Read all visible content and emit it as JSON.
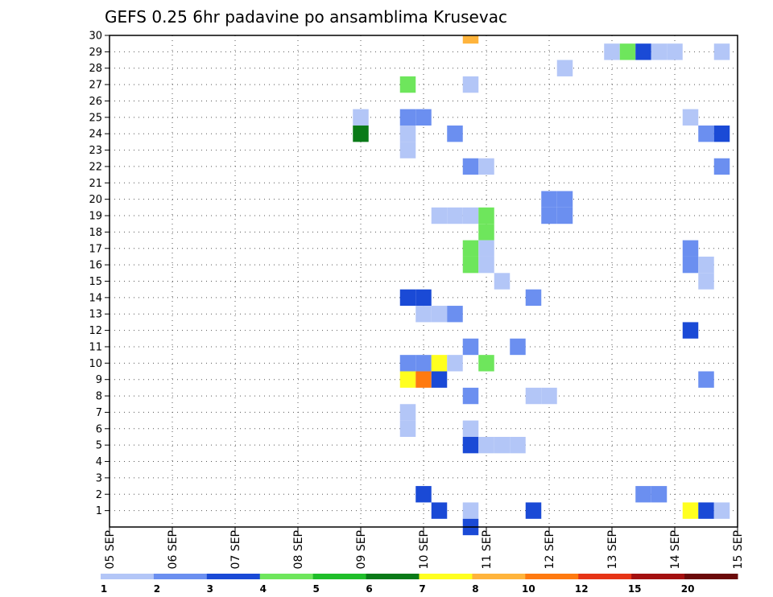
{
  "chart_data": {
    "type": "heatmap",
    "title": "GEFS 0.25 6hr padavine po ansamblima Krusevac",
    "x_tick_labels": [
      "05 SEP",
      "06 SEP",
      "07 SEP",
      "08 SEP",
      "09 SEP",
      "10 SEP",
      "11 SEP",
      "12 SEP",
      "13 SEP",
      "14 SEP",
      "15 SEP"
    ],
    "x_range_days": [
      5,
      15
    ],
    "y_tick_labels": [
      "1",
      "2",
      "3",
      "4",
      "5",
      "6",
      "7",
      "8",
      "9",
      "10",
      "11",
      "12",
      "13",
      "14",
      "15",
      "16",
      "17",
      "18",
      "19",
      "20",
      "21",
      "22",
      "23",
      "24",
      "25",
      "26",
      "27",
      "28",
      "29",
      "30"
    ],
    "y_range": [
      0,
      30
    ],
    "grid": true,
    "colorbar": {
      "labels": [
        "1",
        "2",
        "3",
        "4",
        "5",
        "6",
        "7",
        "8",
        "10",
        "12",
        "15",
        "20"
      ],
      "colors": [
        "#b3c6f7",
        "#6b8ff0",
        "#1a4ad6",
        "#6ee65c",
        "#1fbe2a",
        "#0a7a18",
        "#ffff1f",
        "#ffb43c",
        "#ff7a10",
        "#e63416",
        "#a41010",
        "#6b0a0a"
      ]
    },
    "cells": [
      {
        "member": 30,
        "day": 10.75,
        "color": "#ffb43c"
      },
      {
        "member": 29,
        "day": 13.0,
        "color": "#b3c6f7"
      },
      {
        "member": 29,
        "day": 13.25,
        "color": "#6ee65c"
      },
      {
        "member": 29,
        "day": 13.5,
        "color": "#1a4ad6"
      },
      {
        "member": 29,
        "day": 13.75,
        "color": "#b3c6f7"
      },
      {
        "member": 29,
        "day": 14.0,
        "color": "#b3c6f7"
      },
      {
        "member": 29,
        "day": 14.75,
        "color": "#b3c6f7"
      },
      {
        "member": 28,
        "day": 12.25,
        "color": "#b3c6f7"
      },
      {
        "member": 27,
        "day": 9.75,
        "color": "#6ee65c"
      },
      {
        "member": 27,
        "day": 10.75,
        "color": "#b3c6f7"
      },
      {
        "member": 25,
        "day": 9.0,
        "color": "#b3c6f7"
      },
      {
        "member": 25,
        "day": 9.75,
        "color": "#6b8ff0"
      },
      {
        "member": 25,
        "day": 10.0,
        "color": "#6b8ff0"
      },
      {
        "member": 25,
        "day": 14.25,
        "color": "#b3c6f7"
      },
      {
        "member": 24,
        "day": 9.0,
        "color": "#0a7a18"
      },
      {
        "member": 24,
        "day": 9.75,
        "color": "#b3c6f7"
      },
      {
        "member": 24,
        "day": 10.5,
        "color": "#6b8ff0"
      },
      {
        "member": 24,
        "day": 14.5,
        "color": "#6b8ff0"
      },
      {
        "member": 24,
        "day": 14.75,
        "color": "#1a4ad6"
      },
      {
        "member": 23,
        "day": 9.75,
        "color": "#b3c6f7"
      },
      {
        "member": 22,
        "day": 10.75,
        "color": "#6b8ff0"
      },
      {
        "member": 22,
        "day": 11.0,
        "color": "#b3c6f7"
      },
      {
        "member": 22,
        "day": 14.75,
        "color": "#6b8ff0"
      },
      {
        "member": 20,
        "day": 12.0,
        "color": "#6b8ff0"
      },
      {
        "member": 20,
        "day": 12.25,
        "color": "#6b8ff0"
      },
      {
        "member": 19,
        "day": 12.0,
        "color": "#6b8ff0"
      },
      {
        "member": 19,
        "day": 12.25,
        "color": "#6b8ff0"
      },
      {
        "member": 19,
        "day": 10.25,
        "color": "#b3c6f7"
      },
      {
        "member": 19,
        "day": 10.5,
        "color": "#b3c6f7"
      },
      {
        "member": 19,
        "day": 10.75,
        "color": "#b3c6f7"
      },
      {
        "member": 19,
        "day": 11.0,
        "color": "#6ee65c"
      },
      {
        "member": 18,
        "day": 11.0,
        "color": "#6ee65c"
      },
      {
        "member": 17,
        "day": 10.75,
        "color": "#6ee65c"
      },
      {
        "member": 17,
        "day": 11.0,
        "color": "#b3c6f7"
      },
      {
        "member": 17,
        "day": 14.25,
        "color": "#6b8ff0"
      },
      {
        "member": 16,
        "day": 10.75,
        "color": "#6ee65c"
      },
      {
        "member": 16,
        "day": 11.0,
        "color": "#b3c6f7"
      },
      {
        "member": 16,
        "day": 14.25,
        "color": "#6b8ff0"
      },
      {
        "member": 16,
        "day": 14.5,
        "color": "#b3c6f7"
      },
      {
        "member": 15,
        "day": 11.25,
        "color": "#b3c6f7"
      },
      {
        "member": 15,
        "day": 14.5,
        "color": "#b3c6f7"
      },
      {
        "member": 14,
        "day": 9.75,
        "color": "#1a4ad6"
      },
      {
        "member": 14,
        "day": 10.0,
        "color": "#1a4ad6"
      },
      {
        "member": 14,
        "day": 11.75,
        "color": "#6b8ff0"
      },
      {
        "member": 13,
        "day": 10.0,
        "color": "#b3c6f7"
      },
      {
        "member": 13,
        "day": 10.25,
        "color": "#b3c6f7"
      },
      {
        "member": 13,
        "day": 10.5,
        "color": "#6b8ff0"
      },
      {
        "member": 12,
        "day": 14.25,
        "color": "#1a4ad6"
      },
      {
        "member": 11,
        "day": 10.75,
        "color": "#6b8ff0"
      },
      {
        "member": 11,
        "day": 11.5,
        "color": "#6b8ff0"
      },
      {
        "member": 10,
        "day": 9.75,
        "color": "#6b8ff0"
      },
      {
        "member": 10,
        "day": 10.0,
        "color": "#6b8ff0"
      },
      {
        "member": 10,
        "day": 10.25,
        "color": "#ffff1f"
      },
      {
        "member": 10,
        "day": 10.5,
        "color": "#b3c6f7"
      },
      {
        "member": 10,
        "day": 11.0,
        "color": "#6ee65c"
      },
      {
        "member": 9,
        "day": 9.75,
        "color": "#ffff1f"
      },
      {
        "member": 9,
        "day": 10.0,
        "color": "#ff7a10"
      },
      {
        "member": 9,
        "day": 10.25,
        "color": "#1a4ad6"
      },
      {
        "member": 9,
        "day": 14.5,
        "color": "#6b8ff0"
      },
      {
        "member": 8,
        "day": 10.75,
        "color": "#6b8ff0"
      },
      {
        "member": 8,
        "day": 11.75,
        "color": "#b3c6f7"
      },
      {
        "member": 8,
        "day": 12.0,
        "color": "#b3c6f7"
      },
      {
        "member": 7,
        "day": 9.75,
        "color": "#b3c6f7"
      },
      {
        "member": 6,
        "day": 9.75,
        "color": "#b3c6f7"
      },
      {
        "member": 6,
        "day": 10.75,
        "color": "#b3c6f7"
      },
      {
        "member": 5,
        "day": 10.75,
        "color": "#1a4ad6"
      },
      {
        "member": 5,
        "day": 11.0,
        "color": "#b3c6f7"
      },
      {
        "member": 5,
        "day": 11.25,
        "color": "#b3c6f7"
      },
      {
        "member": 5,
        "day": 11.5,
        "color": "#b3c6f7"
      },
      {
        "member": 2,
        "day": 10.0,
        "color": "#1a4ad6"
      },
      {
        "member": 2,
        "day": 13.5,
        "color": "#6b8ff0"
      },
      {
        "member": 2,
        "day": 13.75,
        "color": "#6b8ff0"
      },
      {
        "member": 1,
        "day": 10.25,
        "color": "#1a4ad6"
      },
      {
        "member": 1,
        "day": 10.75,
        "color": "#b3c6f7"
      },
      {
        "member": 1,
        "day": 11.75,
        "color": "#1a4ad6"
      },
      {
        "member": 1,
        "day": 14.25,
        "color": "#ffff1f"
      },
      {
        "member": 1,
        "day": 14.5,
        "color": "#1a4ad6"
      },
      {
        "member": 1,
        "day": 14.75,
        "color": "#b3c6f7"
      },
      {
        "member": 0,
        "day": 10.75,
        "color": "#1a4ad6"
      }
    ]
  }
}
